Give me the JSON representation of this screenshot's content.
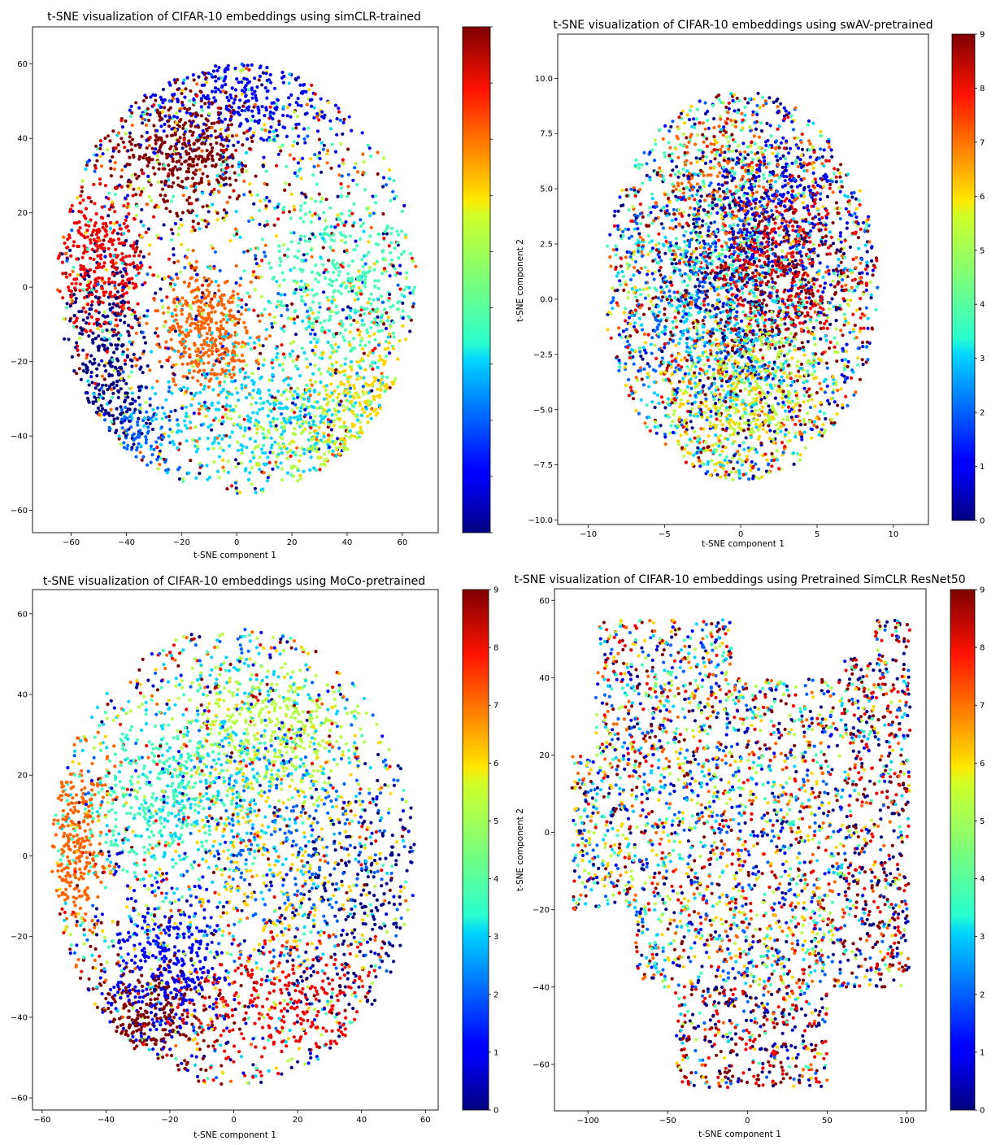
{
  "colormap": "jet",
  "panels": [
    {
      "id": "simclr-trained",
      "title": "t-SNE visualization of CIFAR-10 embeddings using simCLR-trained",
      "xlabel": "t-SNE component 1",
      "ylabel": "",
      "xticks": [
        "−60",
        "−40",
        "−20",
        "0",
        "20",
        "40",
        "60"
      ],
      "yticks": [
        "−60",
        "−40",
        "−20",
        "0",
        "20",
        "40",
        "60"
      ],
      "colorbar_ticks": []
    },
    {
      "id": "swav-pretrained",
      "title": "t-SNE visualization of CIFAR-10 embeddings using swAV-pretrained",
      "xlabel": "t-SNE component 1",
      "ylabel": "t-SNE component 2",
      "xticks": [
        "−10",
        "−5",
        "0",
        "5",
        "10"
      ],
      "yticks": [
        "−10.0",
        "−7.5",
        "−5.0",
        "−2.5",
        "0.0",
        "2.5",
        "5.0",
        "7.5",
        "10.0"
      ],
      "colorbar_ticks": [
        "0",
        "1",
        "2",
        "3",
        "4",
        "5",
        "6",
        "7",
        "8",
        "9"
      ]
    },
    {
      "id": "moco-pretrained",
      "title": "t-SNE visualization of CIFAR-10 embeddings using MoCo-pretrained",
      "xlabel": "t-SNE component 1",
      "ylabel": "",
      "xticks": [
        "−60",
        "−40",
        "−20",
        "0",
        "20",
        "40",
        "60"
      ],
      "yticks": [
        "−60",
        "−40",
        "−20",
        "0",
        "20",
        "40",
        "60"
      ],
      "colorbar_ticks": [
        "0",
        "1",
        "2",
        "3",
        "4",
        "5",
        "6",
        "7",
        "8",
        "9"
      ]
    },
    {
      "id": "pretrained-simclr-resnet50",
      "title": "t-SNE visualization of CIFAR-10 embeddings using Pretrained SimCLR ResNet50",
      "xlabel": "t-SNE component 1",
      "ylabel": "t-SNE component 2",
      "xticks": [
        "−100",
        "−50",
        "0",
        "50",
        "100"
      ],
      "yticks": [
        "−60",
        "−40",
        "−20",
        "0",
        "20",
        "40",
        "60"
      ],
      "colorbar_ticks": [
        "0",
        "1",
        "2",
        "3",
        "4",
        "5",
        "6",
        "7",
        "8",
        "9"
      ]
    }
  ],
  "chart_data": [
    {
      "type": "scatter",
      "title": "t-SNE visualization of CIFAR-10 embeddings using simCLR-trained",
      "xlabel": "t-SNE component 1",
      "ylabel": "",
      "xlim": [
        -74,
        73
      ],
      "ylim": [
        -66,
        70
      ],
      "colorbar": {
        "range": [
          0,
          9
        ],
        "cmap": "jet"
      },
      "cloud": {
        "cx": 0,
        "cy": 2,
        "rx": 65,
        "ry": 58
      },
      "clusters": [
        {
          "label": 0,
          "cx": -48,
          "cy": -22,
          "sx": 8,
          "sy": 16,
          "n": 420
        },
        {
          "label": 1,
          "cx": 0,
          "cy": 52,
          "sx": 22,
          "sy": 8,
          "n": 420
        },
        {
          "label": 2,
          "cx": -35,
          "cy": -42,
          "sx": 8,
          "sy": 6,
          "n": 120
        },
        {
          "label": 3,
          "cx": 10,
          "cy": -35,
          "sx": 22,
          "sy": 14,
          "n": 420
        },
        {
          "label": 4,
          "cx": 40,
          "cy": 0,
          "sx": 16,
          "sy": 14,
          "n": 420
        },
        {
          "label": 5,
          "cx": 25,
          "cy": -42,
          "sx": 18,
          "sy": 10,
          "n": 260
        },
        {
          "label": 6,
          "cx": 48,
          "cy": -32,
          "sx": 10,
          "sy": 12,
          "n": 300
        },
        {
          "label": 7,
          "cx": -12,
          "cy": -12,
          "sx": 8,
          "sy": 8,
          "n": 380
        },
        {
          "label": 8,
          "cx": -50,
          "cy": 8,
          "sx": 9,
          "sy": 10,
          "n": 380
        },
        {
          "label": 9,
          "cx": -20,
          "cy": 36,
          "sx": 14,
          "sy": 9,
          "n": 420
        }
      ],
      "noise": 1200
    },
    {
      "type": "scatter",
      "title": "t-SNE visualization of CIFAR-10 embeddings using swAV-pretrained",
      "xlabel": "t-SNE component 1",
      "ylabel": "t-SNE component 2",
      "xlim": [
        -12,
        12.3
      ],
      "ylim": [
        -10.2,
        12
      ],
      "colorbar": {
        "range": [
          0,
          9
        ],
        "cmap": "jet"
      },
      "cloud": {
        "cx": 0,
        "cy": 0.6,
        "rx": 9,
        "ry": 8.8
      },
      "clusters": [
        {
          "label": 1,
          "cx": 2,
          "cy": 4,
          "sx": 2.5,
          "sy": 2,
          "n": 300
        },
        {
          "label": 0,
          "cx": 1,
          "cy": 1.5,
          "sx": 3,
          "sy": 3,
          "n": 300
        },
        {
          "label": 8,
          "cx": 2.5,
          "cy": 1.5,
          "sx": 2.5,
          "sy": 2,
          "n": 320
        },
        {
          "label": 9,
          "cx": 1.5,
          "cy": 0.5,
          "sx": 3,
          "sy": 2.5,
          "n": 300
        },
        {
          "label": 5,
          "cx": 1,
          "cy": -4,
          "sx": 2.5,
          "sy": 2,
          "n": 280
        },
        {
          "label": 3,
          "cx": -1,
          "cy": -2,
          "sx": 3,
          "sy": 2.5,
          "n": 280
        },
        {
          "label": 4,
          "cx": -2,
          "cy": 3,
          "sx": 3,
          "sy": 3,
          "n": 260
        },
        {
          "label": 2,
          "cx": -3,
          "cy": 0,
          "sx": 3,
          "sy": 3,
          "n": 200
        },
        {
          "label": 6,
          "cx": 0,
          "cy": -5,
          "sx": 3,
          "sy": 2,
          "n": 200
        },
        {
          "label": 7,
          "cx": -1,
          "cy": 5,
          "sx": 3,
          "sy": 2,
          "n": 160
        }
      ],
      "noise": 1800
    },
    {
      "type": "scatter",
      "title": "t-SNE visualization of CIFAR-10 embeddings using MoCo-pretrained",
      "xlabel": "t-SNE component 1",
      "ylabel": "",
      "xlim": [
        -63,
        64
      ],
      "ylim": [
        -63,
        66
      ],
      "colorbar": {
        "range": [
          0,
          9
        ],
        "cmap": "jet"
      },
      "cloud": {
        "cx": 0,
        "cy": 0,
        "rx": 57,
        "ry": 57
      },
      "clusters": [
        {
          "label": 7,
          "cx": -50,
          "cy": 5,
          "sx": 5,
          "sy": 12,
          "n": 320
        },
        {
          "label": 5,
          "cx": 12,
          "cy": 32,
          "sx": 14,
          "sy": 9,
          "n": 420
        },
        {
          "label": 4,
          "cx": -25,
          "cy": 15,
          "sx": 14,
          "sy": 10,
          "n": 320
        },
        {
          "label": 3,
          "cx": -5,
          "cy": 20,
          "sx": 20,
          "sy": 18,
          "n": 380
        },
        {
          "label": 1,
          "cx": -20,
          "cy": -28,
          "sx": 10,
          "sy": 10,
          "n": 380
        },
        {
          "label": 9,
          "cx": -30,
          "cy": -42,
          "sx": 12,
          "sy": 8,
          "n": 380
        },
        {
          "label": 8,
          "cx": 15,
          "cy": -38,
          "sx": 18,
          "sy": 10,
          "n": 320
        },
        {
          "label": 0,
          "cx": 40,
          "cy": -15,
          "sx": 14,
          "sy": 18,
          "n": 320
        },
        {
          "label": 2,
          "cx": 20,
          "cy": 5,
          "sx": 18,
          "sy": 16,
          "n": 220
        },
        {
          "label": 6,
          "cx": 15,
          "cy": 0,
          "sx": 18,
          "sy": 16,
          "n": 200
        }
      ],
      "noise": 1200
    },
    {
      "type": "scatter",
      "title": "t-SNE visualization of CIFAR-10 embeddings using Pretrained SimCLR ResNet50",
      "xlabel": "t-SNE component 1",
      "ylabel": "t-SNE component 2",
      "xlim": [
        -121,
        112
      ],
      "ylim": [
        -72,
        63
      ],
      "colorbar": {
        "range": [
          0,
          9
        ],
        "cmap": "jet"
      },
      "shape": "irregular-blob",
      "point_classes": "mixed 0-9",
      "noise": 3400
    }
  ]
}
